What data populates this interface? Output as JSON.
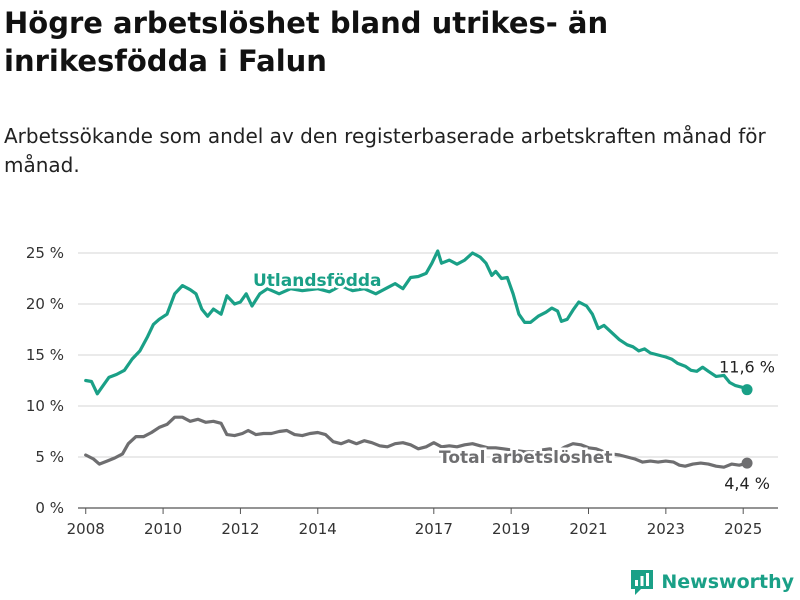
{
  "header": {
    "title": "Högre arbetslöshet bland utrikes- än inrikesfödda i Falun",
    "subtitle": "Arbetssökande som andel av den registerbaserade arbetskraften månad för månad."
  },
  "brand": {
    "name": "Newsworthy",
    "icon": "bar-chart-icon",
    "color": "#1aa087"
  },
  "chart_data": {
    "type": "line",
    "title": "Högre arbetslöshet bland utrikes- än inrikesfödda i Falun",
    "subtitle": "Arbetssökande som andel av den registerbaserade arbetskraften månad för månad.",
    "xlim": [
      2007.8,
      2025.9
    ],
    "ylim": [
      0,
      25
    ],
    "yticks": [
      0,
      5,
      10,
      15,
      20,
      25
    ],
    "ytick_labels": [
      "0 %",
      "5 %",
      "10 %",
      "15 %",
      "20 %",
      "25 %"
    ],
    "xticks": [
      2008,
      2010,
      2012,
      2014,
      2017,
      2019,
      2021,
      2023,
      2025
    ],
    "xtick_labels": [
      "2008",
      "2010",
      "2012",
      "2014",
      "2017",
      "2019",
      "2021",
      "2023",
      "2025"
    ],
    "grid": "horizontal",
    "series": [
      {
        "name": "Utlandsfödda",
        "color": "#1aa087",
        "end_value_label": "11,6 %",
        "points": [
          [
            2008.0,
            12.5
          ],
          [
            2008.15,
            12.4
          ],
          [
            2008.3,
            11.2
          ],
          [
            2008.45,
            12.0
          ],
          [
            2008.6,
            12.8
          ],
          [
            2008.8,
            13.1
          ],
          [
            2009.0,
            13.5
          ],
          [
            2009.2,
            14.6
          ],
          [
            2009.4,
            15.4
          ],
          [
            2009.6,
            16.8
          ],
          [
            2009.75,
            18.0
          ],
          [
            2009.9,
            18.5
          ],
          [
            2010.1,
            19.0
          ],
          [
            2010.3,
            21.0
          ],
          [
            2010.5,
            21.8
          ],
          [
            2010.7,
            21.4
          ],
          [
            2010.85,
            21.0
          ],
          [
            2011.0,
            19.5
          ],
          [
            2011.15,
            18.8
          ],
          [
            2011.3,
            19.5
          ],
          [
            2011.5,
            19.0
          ],
          [
            2011.65,
            20.8
          ],
          [
            2011.85,
            20.0
          ],
          [
            2012.0,
            20.2
          ],
          [
            2012.15,
            21.0
          ],
          [
            2012.3,
            19.8
          ],
          [
            2012.5,
            21.0
          ],
          [
            2012.7,
            21.5
          ],
          [
            2013.0,
            21.0
          ],
          [
            2013.3,
            21.5
          ],
          [
            2013.6,
            21.3
          ],
          [
            2014.0,
            21.5
          ],
          [
            2014.3,
            21.2
          ],
          [
            2014.6,
            21.8
          ],
          [
            2014.9,
            21.3
          ],
          [
            2015.2,
            21.5
          ],
          [
            2015.5,
            21.0
          ],
          [
            2015.8,
            21.6
          ],
          [
            2016.0,
            22.0
          ],
          [
            2016.2,
            21.5
          ],
          [
            2016.4,
            22.6
          ],
          [
            2016.6,
            22.7
          ],
          [
            2016.8,
            23.0
          ],
          [
            2016.95,
            24.0
          ],
          [
            2017.1,
            25.2
          ],
          [
            2017.2,
            24.0
          ],
          [
            2017.4,
            24.3
          ],
          [
            2017.6,
            23.9
          ],
          [
            2017.8,
            24.3
          ],
          [
            2018.0,
            25.0
          ],
          [
            2018.2,
            24.6
          ],
          [
            2018.35,
            24.0
          ],
          [
            2018.5,
            22.8
          ],
          [
            2018.6,
            23.2
          ],
          [
            2018.75,
            22.5
          ],
          [
            2018.9,
            22.6
          ],
          [
            2019.05,
            21.0
          ],
          [
            2019.2,
            19.0
          ],
          [
            2019.35,
            18.2
          ],
          [
            2019.5,
            18.2
          ],
          [
            2019.7,
            18.8
          ],
          [
            2019.9,
            19.2
          ],
          [
            2020.05,
            19.6
          ],
          [
            2020.2,
            19.3
          ],
          [
            2020.3,
            18.3
          ],
          [
            2020.45,
            18.5
          ],
          [
            2020.6,
            19.4
          ],
          [
            2020.75,
            20.2
          ],
          [
            2020.95,
            19.8
          ],
          [
            2021.1,
            19.0
          ],
          [
            2021.25,
            17.6
          ],
          [
            2021.4,
            17.9
          ],
          [
            2021.6,
            17.2
          ],
          [
            2021.8,
            16.5
          ],
          [
            2022.0,
            16.0
          ],
          [
            2022.15,
            15.8
          ],
          [
            2022.3,
            15.4
          ],
          [
            2022.45,
            15.6
          ],
          [
            2022.6,
            15.2
          ],
          [
            2022.8,
            15.0
          ],
          [
            2023.0,
            14.8
          ],
          [
            2023.15,
            14.6
          ],
          [
            2023.3,
            14.2
          ],
          [
            2023.5,
            13.9
          ],
          [
            2023.65,
            13.5
          ],
          [
            2023.8,
            13.4
          ],
          [
            2023.95,
            13.8
          ],
          [
            2024.1,
            13.4
          ],
          [
            2024.3,
            12.9
          ],
          [
            2024.5,
            13.0
          ],
          [
            2024.65,
            12.3
          ],
          [
            2024.8,
            12.0
          ],
          [
            2025.0,
            11.8
          ],
          [
            2025.1,
            11.6
          ]
        ]
      },
      {
        "name": "Total arbetslöshet",
        "color": "#6e6e70",
        "end_value_label": "4,4 %",
        "points": [
          [
            2008.0,
            5.2
          ],
          [
            2008.2,
            4.8
          ],
          [
            2008.35,
            4.3
          ],
          [
            2008.55,
            4.6
          ],
          [
            2008.75,
            4.9
          ],
          [
            2008.95,
            5.3
          ],
          [
            2009.1,
            6.3
          ],
          [
            2009.3,
            7.0
          ],
          [
            2009.5,
            7.0
          ],
          [
            2009.7,
            7.4
          ],
          [
            2009.9,
            7.9
          ],
          [
            2010.1,
            8.2
          ],
          [
            2010.3,
            8.9
          ],
          [
            2010.5,
            8.9
          ],
          [
            2010.7,
            8.5
          ],
          [
            2010.9,
            8.7
          ],
          [
            2011.1,
            8.4
          ],
          [
            2011.3,
            8.5
          ],
          [
            2011.5,
            8.3
          ],
          [
            2011.65,
            7.2
          ],
          [
            2011.85,
            7.1
          ],
          [
            2012.05,
            7.3
          ],
          [
            2012.2,
            7.6
          ],
          [
            2012.4,
            7.2
          ],
          [
            2012.6,
            7.3
          ],
          [
            2012.8,
            7.3
          ],
          [
            2013.0,
            7.5
          ],
          [
            2013.2,
            7.6
          ],
          [
            2013.4,
            7.2
          ],
          [
            2013.6,
            7.1
          ],
          [
            2013.8,
            7.3
          ],
          [
            2014.0,
            7.4
          ],
          [
            2014.2,
            7.2
          ],
          [
            2014.4,
            6.5
          ],
          [
            2014.6,
            6.3
          ],
          [
            2014.8,
            6.6
          ],
          [
            2015.0,
            6.3
          ],
          [
            2015.2,
            6.6
          ],
          [
            2015.4,
            6.4
          ],
          [
            2015.6,
            6.1
          ],
          [
            2015.8,
            6.0
          ],
          [
            2016.0,
            6.3
          ],
          [
            2016.2,
            6.4
          ],
          [
            2016.4,
            6.2
          ],
          [
            2016.6,
            5.8
          ],
          [
            2016.8,
            6.0
          ],
          [
            2017.0,
            6.4
          ],
          [
            2017.2,
            6.0
          ],
          [
            2017.4,
            6.1
          ],
          [
            2017.6,
            6.0
          ],
          [
            2017.8,
            6.2
          ],
          [
            2018.0,
            6.3
          ],
          [
            2018.2,
            6.1
          ],
          [
            2018.4,
            5.9
          ],
          [
            2018.6,
            5.9
          ],
          [
            2018.8,
            5.8
          ],
          [
            2019.0,
            5.7
          ],
          [
            2019.2,
            5.6
          ],
          [
            2019.4,
            5.5
          ],
          [
            2019.6,
            5.5
          ],
          [
            2019.8,
            5.7
          ],
          [
            2020.0,
            5.8
          ],
          [
            2020.2,
            5.6
          ],
          [
            2020.4,
            6.0
          ],
          [
            2020.6,
            6.3
          ],
          [
            2020.8,
            6.2
          ],
          [
            2021.0,
            5.9
          ],
          [
            2021.2,
            5.8
          ],
          [
            2021.4,
            5.5
          ],
          [
            2021.6,
            5.3
          ],
          [
            2021.8,
            5.2
          ],
          [
            2022.0,
            5.0
          ],
          [
            2022.2,
            4.8
          ],
          [
            2022.4,
            4.5
          ],
          [
            2022.6,
            4.6
          ],
          [
            2022.8,
            4.5
          ],
          [
            2023.0,
            4.6
          ],
          [
            2023.2,
            4.5
          ],
          [
            2023.35,
            4.2
          ],
          [
            2023.5,
            4.1
          ],
          [
            2023.7,
            4.3
          ],
          [
            2023.9,
            4.4
          ],
          [
            2024.1,
            4.3
          ],
          [
            2024.3,
            4.1
          ],
          [
            2024.5,
            4.0
          ],
          [
            2024.7,
            4.3
          ],
          [
            2024.9,
            4.2
          ],
          [
            2025.1,
            4.4
          ]
        ]
      }
    ]
  }
}
